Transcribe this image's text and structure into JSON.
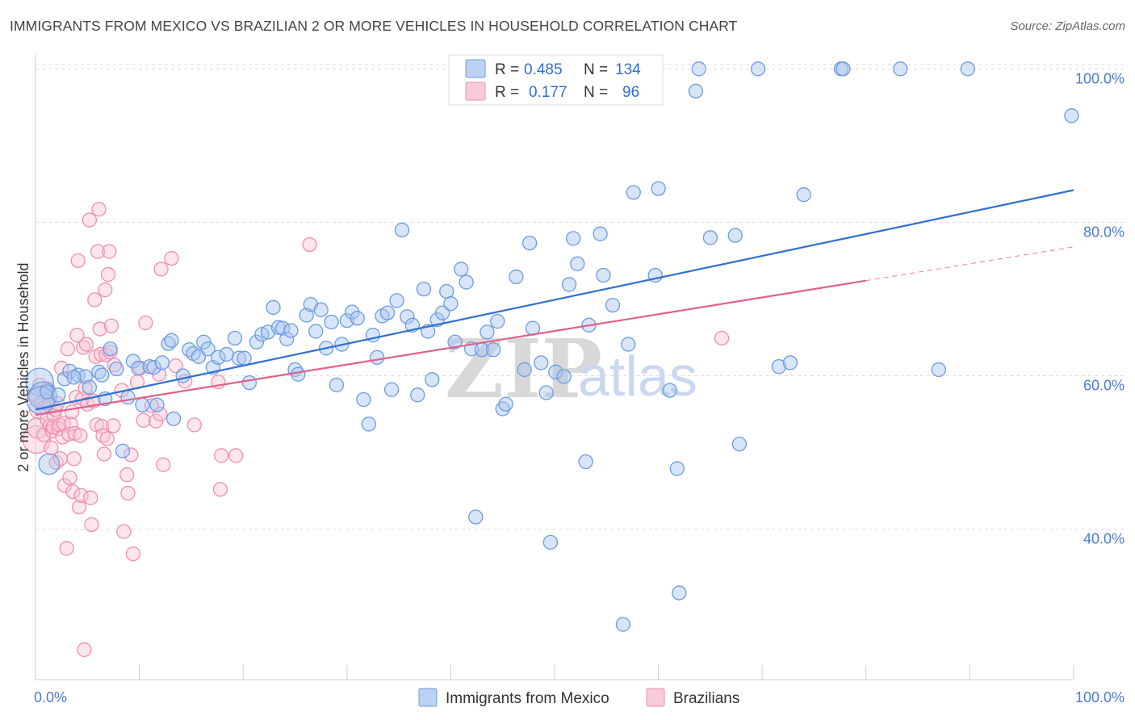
{
  "header": {
    "title": "IMMIGRANTS FROM MEXICO VS BRAZILIAN 2 OR MORE VEHICLES IN HOUSEHOLD CORRELATION CHART",
    "source": "Source: ZipAtlas.com"
  },
  "watermark": {
    "part1": "ZIP",
    "part2": "atlas"
  },
  "legend": {
    "rows": [
      {
        "r_label": "R =",
        "r_value": "0.485",
        "n_label": "N =",
        "n_value": "134",
        "color": "#8fb4ea"
      },
      {
        "r_label": "R =",
        "r_value": "0.177",
        "n_label": "N =",
        "n_value": "96",
        "color": "#f4a9c0"
      }
    ]
  },
  "bottom_legend": {
    "items": [
      {
        "label": "Immigrants from Mexico",
        "color": "#8fb4ea"
      },
      {
        "label": "Brazilians",
        "color": "#f4a9c0"
      }
    ]
  },
  "chart_data": {
    "type": "scatter",
    "xlabel": "",
    "ylabel": "2 or more Vehicles in Household",
    "xlim": [
      0,
      100
    ],
    "ylim": [
      20.4,
      101.4
    ],
    "x_tick_labels": [
      "0.0%",
      "100.0%"
    ],
    "y_ticks": [
      40,
      60,
      80,
      100
    ],
    "y_tick_labels": [
      "40.0%",
      "60.0%",
      "80.0%",
      "100.0%"
    ],
    "grid": true,
    "legend_position": "top-center",
    "series": [
      {
        "name": "Immigrants from Mexico",
        "color": "#6b9be3",
        "fill": "#a9c6f0",
        "trend": {
          "x": [
            0,
            100
          ],
          "y": [
            55.6,
            84.2
          ],
          "color": "#2f6fd0"
        },
        "points": [
          [
            0.4,
            59.2,
            2
          ],
          [
            0.7,
            57.4,
            2
          ],
          [
            0.5,
            56.8,
            2
          ],
          [
            1.1,
            57.9,
            1
          ],
          [
            1.3,
            48.5,
            1.5
          ],
          [
            2.8,
            59.6,
            1
          ],
          [
            3.3,
            60.6,
            1
          ],
          [
            4.1,
            60.1,
            1
          ],
          [
            4.8,
            59.9,
            1
          ],
          [
            5.2,
            58.5,
            1
          ],
          [
            6.1,
            60.5,
            1
          ],
          [
            6.4,
            60.1,
            1
          ],
          [
            6.7,
            57.0,
            1
          ],
          [
            7.2,
            63.5,
            1
          ],
          [
            7.8,
            60.9,
            1
          ],
          [
            8.4,
            50.2,
            1
          ],
          [
            8.9,
            57.2,
            1
          ],
          [
            9.4,
            61.9,
            1
          ],
          [
            9.9,
            61.0,
            1
          ],
          [
            10.3,
            56.2,
            1
          ],
          [
            11.0,
            61.2,
            1
          ],
          [
            11.4,
            61.1,
            1
          ],
          [
            11.7,
            56.2,
            1
          ],
          [
            12.2,
            61.7,
            1
          ],
          [
            12.8,
            64.2,
            1
          ],
          [
            13.1,
            64.6,
            1
          ],
          [
            13.3,
            54.4,
            1
          ],
          [
            14.2,
            60.0,
            1
          ],
          [
            14.8,
            63.4,
            1
          ],
          [
            15.2,
            62.9,
            1
          ],
          [
            15.7,
            62.5,
            1
          ],
          [
            16.2,
            64.4,
            1
          ],
          [
            16.6,
            63.5,
            1
          ],
          [
            17.1,
            61.1,
            1
          ],
          [
            17.6,
            62.4,
            1
          ],
          [
            18.4,
            62.8,
            1
          ],
          [
            19.2,
            64.9,
            1
          ],
          [
            19.6,
            62.3,
            1
          ],
          [
            20.1,
            62.3,
            1
          ],
          [
            20.6,
            59.1,
            1
          ],
          [
            21.3,
            64.4,
            1
          ],
          [
            21.8,
            65.4,
            1
          ],
          [
            22.4,
            65.7,
            1
          ],
          [
            22.9,
            68.9,
            1
          ],
          [
            23.4,
            66.3,
            1
          ],
          [
            23.8,
            66.2,
            1
          ],
          [
            24.2,
            64.8,
            1
          ],
          [
            24.6,
            65.9,
            1
          ],
          [
            25.0,
            60.8,
            1
          ],
          [
            25.3,
            60.2,
            1
          ],
          [
            26.1,
            67.9,
            1
          ],
          [
            26.5,
            69.3,
            1
          ],
          [
            27.0,
            65.8,
            1
          ],
          [
            27.5,
            68.6,
            1
          ],
          [
            28.0,
            63.6,
            1
          ],
          [
            28.5,
            67.0,
            1
          ],
          [
            29.0,
            58.8,
            1
          ],
          [
            29.5,
            64.1,
            1
          ],
          [
            30.0,
            67.2,
            1
          ],
          [
            30.5,
            68.3,
            1
          ],
          [
            31.0,
            67.5,
            1
          ],
          [
            31.6,
            56.9,
            1
          ],
          [
            32.1,
            53.7,
            1
          ],
          [
            32.5,
            65.3,
            1
          ],
          [
            32.9,
            62.4,
            1
          ],
          [
            33.4,
            67.8,
            1
          ],
          [
            33.9,
            68.2,
            1
          ],
          [
            34.3,
            58.2,
            1
          ],
          [
            34.8,
            69.8,
            1
          ],
          [
            35.3,
            79.0,
            1
          ],
          [
            35.8,
            67.7,
            1
          ],
          [
            36.3,
            66.6,
            1
          ],
          [
            36.8,
            57.5,
            1
          ],
          [
            37.4,
            71.3,
            1
          ],
          [
            37.8,
            65.8,
            1
          ],
          [
            38.2,
            59.5,
            1
          ],
          [
            38.7,
            67.3,
            1
          ],
          [
            39.2,
            68.2,
            1
          ],
          [
            39.6,
            71.0,
            1
          ],
          [
            40.0,
            69.4,
            1
          ],
          [
            40.4,
            64.4,
            1
          ],
          [
            41.0,
            73.9,
            1
          ],
          [
            41.5,
            72.2,
            1
          ],
          [
            42.0,
            63.5,
            1
          ],
          [
            42.4,
            41.6,
            1
          ],
          [
            43.0,
            63.4,
            1
          ],
          [
            43.5,
            65.7,
            1
          ],
          [
            44.1,
            63.4,
            1
          ],
          [
            44.5,
            67.1,
            1
          ],
          [
            45.0,
            55.7,
            1
          ],
          [
            45.3,
            56.3,
            1
          ],
          [
            46.3,
            72.9,
            1
          ],
          [
            47.1,
            60.8,
            1
          ],
          [
            47.6,
            77.3,
            1
          ],
          [
            47.9,
            66.2,
            1
          ],
          [
            48.7,
            61.7,
            1
          ],
          [
            49.2,
            57.8,
            1
          ],
          [
            49.6,
            38.3,
            1
          ],
          [
            50.1,
            60.5,
            1
          ],
          [
            50.9,
            59.9,
            1
          ],
          [
            51.4,
            71.9,
            1
          ],
          [
            51.8,
            77.9,
            1
          ],
          [
            52.2,
            74.6,
            1
          ],
          [
            53.0,
            48.8,
            1
          ],
          [
            53.3,
            66.6,
            1
          ],
          [
            54.4,
            78.5,
            1
          ],
          [
            54.7,
            73.1,
            1
          ],
          [
            55.6,
            69.2,
            1
          ],
          [
            56.6,
            27.6,
            1
          ],
          [
            57.1,
            64.1,
            1
          ],
          [
            57.6,
            83.9,
            1
          ],
          [
            58.5,
            100.0,
            1.5
          ],
          [
            59.7,
            73.1,
            1
          ],
          [
            60.0,
            84.4,
            1
          ],
          [
            61.1,
            58.1,
            1
          ],
          [
            61.8,
            47.9,
            1
          ],
          [
            62.0,
            31.7,
            1
          ],
          [
            63.6,
            97.1,
            1
          ],
          [
            63.9,
            100.0,
            1
          ],
          [
            65.0,
            78.0,
            1
          ],
          [
            67.4,
            78.3,
            1
          ],
          [
            67.8,
            51.1,
            1
          ],
          [
            69.6,
            100.0,
            1
          ],
          [
            71.6,
            61.2,
            1
          ],
          [
            72.7,
            61.7,
            1
          ],
          [
            74.0,
            83.6,
            1
          ],
          [
            77.6,
            100.0,
            1
          ],
          [
            77.8,
            100.0,
            1
          ],
          [
            83.3,
            100.0,
            1
          ],
          [
            87.0,
            60.8,
            1
          ],
          [
            89.8,
            100.0,
            1
          ],
          [
            99.8,
            93.9,
            1
          ],
          [
            2.2,
            57.5,
            1
          ],
          [
            3.7,
            59.8,
            1
          ]
        ]
      },
      {
        "name": "Brazilians",
        "color": "#ef8fae",
        "fill": "#f8c5d5",
        "trend": {
          "x": [
            0,
            80
          ],
          "y": [
            54.9,
            72.4
          ],
          "color": "#e0608a",
          "dash_x": [
            80,
            100
          ],
          "dash_y": [
            72.4,
            76.8
          ]
        },
        "points": [
          [
            0.1,
            51.7,
            2
          ],
          [
            0.2,
            53.2,
            1.5
          ],
          [
            0.3,
            57.4,
            1.5
          ],
          [
            0.4,
            55.7,
            1.5
          ],
          [
            0.4,
            58.8,
            1
          ],
          [
            0.6,
            56.5,
            1
          ],
          [
            0.8,
            52.3,
            1
          ],
          [
            0.9,
            55.9,
            1
          ],
          [
            1.1,
            54.3,
            1
          ],
          [
            1.2,
            58.3,
            1
          ],
          [
            1.3,
            56.2,
            1
          ],
          [
            1.4,
            53.5,
            1
          ],
          [
            1.5,
            50.6,
            1
          ],
          [
            1.6,
            52.8,
            1
          ],
          [
            1.7,
            53.3,
            1
          ],
          [
            1.8,
            54.8,
            1
          ],
          [
            1.9,
            55.6,
            1
          ],
          [
            2.0,
            48.7,
            1
          ],
          [
            2.1,
            56.4,
            1
          ],
          [
            2.2,
            53.1,
            1
          ],
          [
            2.3,
            53.6,
            1
          ],
          [
            2.4,
            49.2,
            1
          ],
          [
            2.5,
            61.0,
            1
          ],
          [
            2.6,
            52.0,
            1
          ],
          [
            2.7,
            53.8,
            1
          ],
          [
            2.8,
            45.7,
            1
          ],
          [
            3.0,
            37.5,
            1
          ],
          [
            3.1,
            63.5,
            1
          ],
          [
            3.2,
            52.4,
            1
          ],
          [
            3.3,
            46.7,
            1
          ],
          [
            3.4,
            53.7,
            1
          ],
          [
            3.5,
            55.3,
            1
          ],
          [
            3.6,
            44.9,
            1
          ],
          [
            3.7,
            49.2,
            1
          ],
          [
            3.8,
            52.5,
            1
          ],
          [
            3.9,
            57.2,
            1
          ],
          [
            4.0,
            65.3,
            1
          ],
          [
            4.1,
            75.0,
            1
          ],
          [
            4.2,
            42.9,
            1
          ],
          [
            4.3,
            52.2,
            1
          ],
          [
            4.4,
            44.4,
            1
          ],
          [
            4.5,
            57.0,
            1
          ],
          [
            4.6,
            63.7,
            1
          ],
          [
            4.7,
            24.3,
            1
          ],
          [
            4.8,
            58.4,
            1
          ],
          [
            4.9,
            64.1,
            1
          ],
          [
            5.0,
            56.3,
            1
          ],
          [
            5.2,
            80.3,
            1
          ],
          [
            5.3,
            44.1,
            1
          ],
          [
            5.4,
            40.6,
            1
          ],
          [
            5.6,
            56.7,
            1
          ],
          [
            5.7,
            69.9,
            1
          ],
          [
            5.8,
            62.5,
            1
          ],
          [
            5.9,
            53.6,
            1
          ],
          [
            6.0,
            76.2,
            1
          ],
          [
            6.1,
            81.7,
            1
          ],
          [
            6.2,
            66.1,
            1
          ],
          [
            6.3,
            62.8,
            1
          ],
          [
            6.4,
            53.4,
            1
          ],
          [
            6.5,
            52.2,
            1
          ],
          [
            6.6,
            49.8,
            1
          ],
          [
            6.7,
            71.2,
            1
          ],
          [
            6.8,
            62.7,
            1
          ],
          [
            6.9,
            51.8,
            1
          ],
          [
            7.0,
            73.2,
            1
          ],
          [
            7.1,
            76.2,
            1
          ],
          [
            7.2,
            63.1,
            1
          ],
          [
            7.3,
            66.5,
            1
          ],
          [
            7.5,
            53.5,
            1
          ],
          [
            8.3,
            58.1,
            1
          ],
          [
            8.5,
            39.7,
            1
          ],
          [
            8.8,
            47.1,
            1
          ],
          [
            8.9,
            44.7,
            1
          ],
          [
            9.2,
            49.7,
            1
          ],
          [
            9.4,
            36.8,
            1
          ],
          [
            9.8,
            59.2,
            1
          ],
          [
            10.1,
            61.0,
            1
          ],
          [
            10.4,
            54.2,
            1
          ],
          [
            10.6,
            66.9,
            1
          ],
          [
            11.2,
            56.1,
            1
          ],
          [
            11.6,
            54.1,
            1
          ],
          [
            11.9,
            60.2,
            1
          ],
          [
            12.0,
            55.0,
            1
          ],
          [
            12.1,
            73.9,
            1
          ],
          [
            12.3,
            48.4,
            1
          ],
          [
            13.1,
            75.3,
            1
          ],
          [
            13.5,
            61.3,
            1
          ],
          [
            14.4,
            59.3,
            1
          ],
          [
            15.3,
            53.6,
            1
          ],
          [
            17.6,
            59.2,
            1
          ],
          [
            17.8,
            45.2,
            1
          ],
          [
            17.9,
            49.6,
            1
          ],
          [
            19.3,
            49.6,
            1
          ],
          [
            26.4,
            77.1,
            1
          ],
          [
            66.1,
            64.9,
            1
          ],
          [
            7.6,
            61.4,
            1
          ]
        ]
      }
    ]
  }
}
